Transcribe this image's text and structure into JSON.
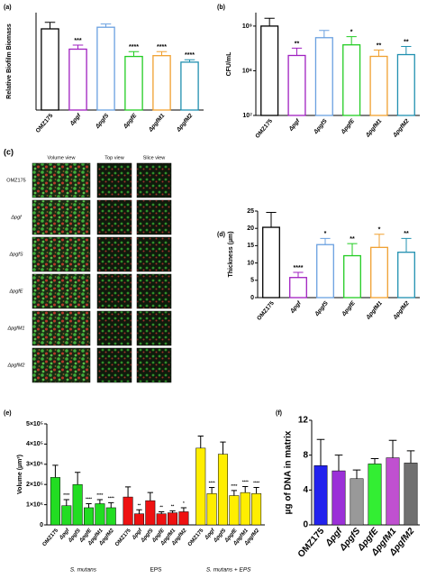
{
  "chart_data": [
    {
      "type": "bar",
      "panel_label": "(a)",
      "ylabel": "Relative Biofilm Biomass",
      "style": "outline",
      "categories": [
        "OMZ175",
        "Δpgf",
        "ΔpgfS",
        "ΔpgfE",
        "ΔpgfM1",
        "ΔpgfM2"
      ],
      "values": [
        1.0,
        0.75,
        1.02,
        0.66,
        0.67,
        0.59
      ],
      "errors": [
        0.08,
        0.05,
        0.04,
        0.06,
        0.05,
        0.03
      ],
      "significance": [
        null,
        "***",
        null,
        "****",
        "****",
        "****"
      ],
      "colors": [
        "#000000",
        "#a020c0",
        "#6aa0e0",
        "#22cc22",
        "#f0a030",
        "#2090b0"
      ],
      "ylim": [
        0,
        1.2
      ]
    },
    {
      "type": "bar",
      "panel_label": "(b)",
      "ylabel": "CFU/mL",
      "style": "outline",
      "log_scale": true,
      "categories": [
        "OMZ175",
        "Δpgf",
        "ΔpgfS",
        "ΔpgfE",
        "ΔpgfM1",
        "ΔpgfM2"
      ],
      "values": [
        1000000000,
        220000000,
        550000000,
        380000000,
        210000000,
        230000000
      ],
      "errors": [
        500000000,
        100000000,
        250000000,
        200000000,
        80000000,
        120000000
      ],
      "significance": [
        null,
        "**",
        null,
        "*",
        "**",
        "**"
      ],
      "colors": [
        "#000000",
        "#a020c0",
        "#6aa0e0",
        "#22cc22",
        "#f0a030",
        "#2090b0"
      ],
      "ylim": [
        10000000,
        2000000000
      ],
      "yticks": [
        {
          "value": 10000000,
          "label": "10⁷"
        },
        {
          "value": 100000000,
          "label": "10⁸"
        },
        {
          "value": 1000000000,
          "label": "10⁹"
        }
      ]
    },
    {
      "type": "bar",
      "panel_label": "(d)",
      "ylabel": "Thickness (µm)",
      "style": "outline",
      "categories": [
        "OMZ175",
        "Δpgf",
        "ΔpgfS",
        "ΔpgfE",
        "ΔpgfM1",
        "ΔpgfM2"
      ],
      "values": [
        20.3,
        5.8,
        15.3,
        12.1,
        14.5,
        13.1
      ],
      "errors": [
        4.3,
        1.5,
        1.8,
        3.5,
        3.8,
        4.0
      ],
      "significance": [
        null,
        "****",
        "*",
        "**",
        "*",
        "**"
      ],
      "colors": [
        "#000000",
        "#a020c0",
        "#6aa0e0",
        "#22cc22",
        "#f0a030",
        "#2090b0"
      ],
      "ylim": [
        0,
        25
      ],
      "yticks": [
        0,
        5,
        10,
        15,
        20,
        25
      ]
    },
    {
      "type": "grouped_bar",
      "panel_label": "(e)",
      "ylabel": "Volume (µm³)",
      "categories": [
        "OMZ175",
        "Δpgf",
        "ΔpgfS",
        "ΔpgfE",
        "ΔpgfM1",
        "ΔpgfM2"
      ],
      "groups": [
        {
          "name": "S. mutans",
          "color": "#22dd22",
          "values": [
            235000,
            95000,
            200000,
            85000,
            105000,
            85000
          ],
          "errors": [
            60000,
            30000,
            60000,
            20000,
            20000,
            25000
          ],
          "significance": [
            null,
            "****",
            null,
            "****",
            "****",
            "****"
          ]
        },
        {
          "name": "EPS",
          "color": "#ee1111",
          "values": [
            138000,
            55000,
            120000,
            55000,
            60000,
            65000
          ],
          "errors": [
            50000,
            20000,
            40000,
            10000,
            10000,
            20000
          ],
          "significance": [
            null,
            "**",
            null,
            "**",
            "**",
            "*"
          ]
        },
        {
          "name": "S. mutans + EPS",
          "color": "#ffee00",
          "values": [
            380000,
            155000,
            350000,
            145000,
            160000,
            155000
          ],
          "errors": [
            60000,
            30000,
            60000,
            25000,
            30000,
            30000
          ],
          "significance": [
            null,
            "****",
            null,
            "****",
            "****",
            "****"
          ]
        }
      ],
      "ylim": [
        0,
        500000
      ],
      "yticks": [
        0,
        {
          "value": 100000,
          "label": "1×10⁵"
        },
        {
          "value": 200000,
          "label": "2×10⁵"
        },
        {
          "value": 300000,
          "label": "3×10⁵"
        },
        {
          "value": 400000,
          "label": "4×10⁵"
        },
        {
          "value": 500000,
          "label": "5×10⁵"
        }
      ]
    },
    {
      "type": "bar",
      "panel_label": "(f)",
      "ylabel": "µg of DNA in matrix",
      "style": "solid",
      "categories": [
        "OMZ175",
        "Δpgf",
        "ΔpgfS",
        "ΔpgfE",
        "ΔpgfM1",
        "ΔpgfM2"
      ],
      "values": [
        6.8,
        6.2,
        5.3,
        7.0,
        7.7,
        7.1
      ],
      "errors": [
        3.0,
        1.8,
        1.0,
        0.6,
        2.0,
        1.4
      ],
      "colors": [
        "#2222ee",
        "#9b30d8",
        "#999999",
        "#33ee33",
        "#c050d0",
        "#707070"
      ],
      "ylim": [
        0,
        12
      ],
      "yticks": [
        0,
        4,
        8,
        12
      ]
    }
  ],
  "microscopy": {
    "panel_label": "(c)",
    "columns": [
      "Volume view",
      "Top view",
      "Slice view"
    ],
    "rows": [
      "OMZ175",
      "Δpgf",
      "ΔpgfS",
      "ΔpgfE",
      "ΔpgfM1",
      "ΔpgfM2"
    ]
  }
}
